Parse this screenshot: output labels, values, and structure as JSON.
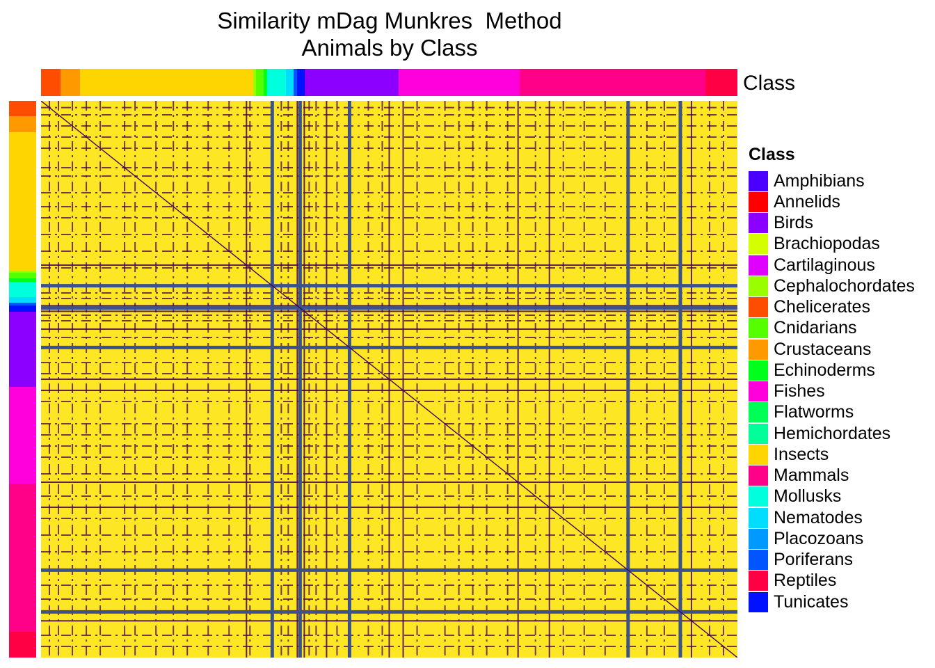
{
  "chart_data": {
    "type": "heatmap",
    "title": [
      "Similarity mDag Munkres  Method",
      "Animals by Class"
    ],
    "annotation_label": "Class",
    "legend": {
      "title": "Class",
      "position": "right",
      "items": [
        {
          "label": "Amphibians",
          "color": "#4B00FF"
        },
        {
          "label": "Annelids",
          "color": "#FF0000"
        },
        {
          "label": "Birds",
          "color": "#8B00FF"
        },
        {
          "label": "Brachiopodas",
          "color": "#D4FF00"
        },
        {
          "label": "Cartilaginous",
          "color": "#E000FF"
        },
        {
          "label": "Cephalochordates",
          "color": "#99FF00"
        },
        {
          "label": "Chelicerates",
          "color": "#FF4D00"
        },
        {
          "label": "Cnidarians",
          "color": "#55FF00"
        },
        {
          "label": "Crustaceans",
          "color": "#FF9900"
        },
        {
          "label": "Echinoderms",
          "color": "#00FF1A"
        },
        {
          "label": "Fishes",
          "color": "#FF00DD"
        },
        {
          "label": "Flatworms",
          "color": "#00FF55"
        },
        {
          "label": "Hemichordates",
          "color": "#00FF99"
        },
        {
          "label": "Insects",
          "color": "#FFD500"
        },
        {
          "label": "Mammals",
          "color": "#FF0088"
        },
        {
          "label": "Mollusks",
          "color": "#00FFDD"
        },
        {
          "label": "Nematodes",
          "color": "#00DDFF"
        },
        {
          "label": "Placozoans",
          "color": "#0099FF"
        },
        {
          "label": "Poriferans",
          "color": "#0055FF"
        },
        {
          "label": "Reptiles",
          "color": "#FF0044"
        },
        {
          "label": "Tunicates",
          "color": "#0011FF"
        }
      ]
    },
    "class_order": [
      {
        "class": "Chelicerates",
        "fraction": 0.027
      },
      {
        "class": "Crustaceans",
        "fraction": 0.028
      },
      {
        "class": "Insects",
        "fraction": 0.244
      },
      {
        "class": "Cephalochordates",
        "fraction": 0.004
      },
      {
        "class": "Cnidarians",
        "fraction": 0.01
      },
      {
        "class": "Echinoderms",
        "fraction": 0.005
      },
      {
        "class": "Mollusks",
        "fraction": 0.027
      },
      {
        "class": "Nematodes",
        "fraction": 0.01
      },
      {
        "class": "Poriferans",
        "fraction": 0.005
      },
      {
        "class": "Tunicates",
        "fraction": 0.011
      },
      {
        "class": "Birds",
        "fraction": 0.132
      },
      {
        "class": "Fishes",
        "fraction": 0.171
      },
      {
        "class": "Mammals",
        "fraction": 0.261
      },
      {
        "class": "Reptiles",
        "fraction": 0.045
      }
    ],
    "high_value_color": "#FDE725",
    "low_value_color": "#440154",
    "mid_value_color": "#3B528B",
    "diagonal": "low",
    "strong_lines": [
      0.332,
      0.372,
      0.443,
      0.843,
      0.918
    ],
    "medium_lines": [
      0.295,
      0.368,
      0.378,
      0.41,
      0.5,
      0.52,
      0.685,
      0.73,
      0.934
    ],
    "faint_lines": [
      0.012,
      0.025,
      0.045,
      0.065,
      0.085,
      0.12,
      0.135,
      0.165,
      0.19,
      0.21,
      0.24,
      0.27,
      0.3,
      0.345,
      0.355,
      0.385,
      0.395,
      0.425,
      0.47,
      0.49,
      0.54,
      0.58,
      0.6,
      0.62,
      0.64,
      0.67,
      0.71,
      0.75,
      0.78,
      0.81,
      0.87,
      0.895,
      0.96,
      0.98
    ]
  }
}
